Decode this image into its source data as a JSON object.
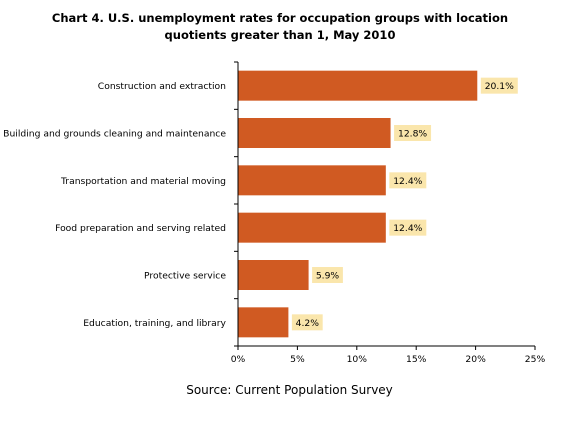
{
  "chart_data": {
    "type": "bar",
    "orientation": "horizontal",
    "title": "Chart 4. U.S. unemployment rates for occupation groups with location quotients greater than 1, May 2010",
    "categories": [
      "Construction and extraction",
      "Building and grounds cleaning and maintenance",
      "Transportation and material moving",
      "Food preparation and serving related",
      "Protective service",
      "Education, training, and library"
    ],
    "values": [
      20.1,
      12.8,
      12.4,
      12.4,
      5.9,
      4.2
    ],
    "value_labels": [
      "20.1%",
      "12.8%",
      "12.4%",
      "12.4%",
      "5.9%",
      "4.2%"
    ],
    "xlim": [
      0,
      25
    ],
    "x_ticks": [
      0,
      5,
      10,
      15,
      20,
      25
    ],
    "x_tick_labels": [
      "0%",
      "5%",
      "10%",
      "15%",
      "20%",
      "25%"
    ],
    "xlabel": "",
    "ylabel": "",
    "grid": false,
    "legend": "none",
    "bar_color": "#d05a22",
    "label_bg_color": "#fae6ac",
    "source": "Source: Current Population Survey"
  }
}
